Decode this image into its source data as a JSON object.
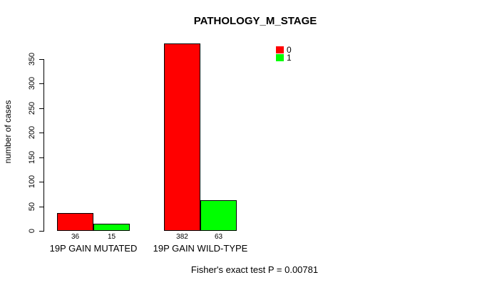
{
  "chart_data": {
    "type": "bar",
    "title": "PATHOLOGY_M_STAGE",
    "ylabel": "number of cases",
    "xlabel": "",
    "categories": [
      "19P GAIN MUTATED",
      "19P GAIN WILD-TYPE"
    ],
    "series": [
      {
        "name": "0",
        "color": "#ff0000",
        "values": [
          36,
          382
        ]
      },
      {
        "name": "1",
        "color": "#00ff00",
        "values": [
          15,
          63
        ]
      }
    ],
    "yticks": [
      0,
      50,
      100,
      150,
      200,
      250,
      300,
      350
    ],
    "ylim": [
      0,
      385
    ],
    "grid": false,
    "legend_position": "top-right",
    "bar_border_color": "#000000",
    "axis_color": "#000000",
    "background": "#ffffff",
    "annotation": "Fisher's exact test P = 0.00781"
  }
}
